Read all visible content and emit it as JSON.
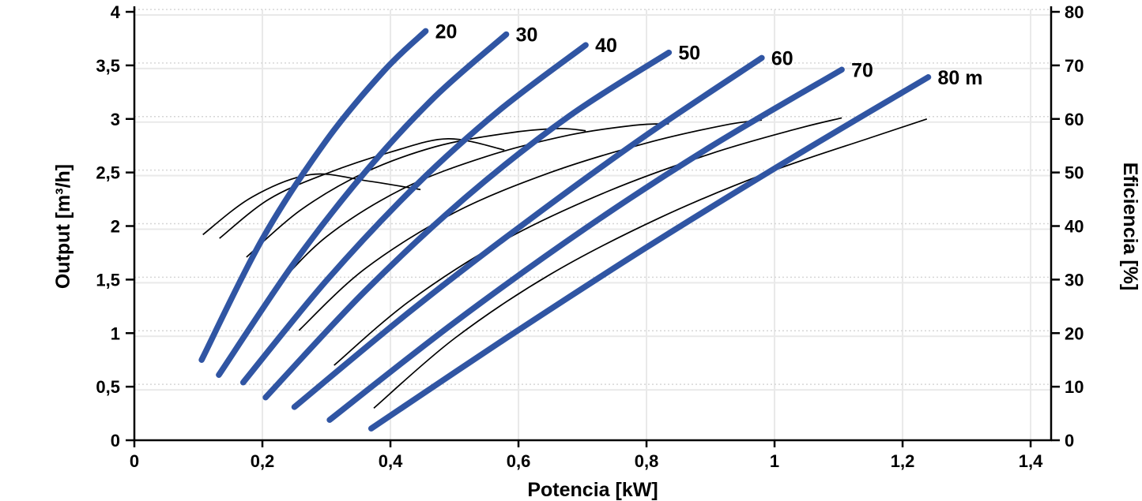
{
  "chart_data": {
    "type": "line",
    "title": "",
    "xlabel": "Potencia [kW]",
    "ylabel_left": "Output [m³/h]",
    "ylabel_right": "Eficiencia [%]",
    "xlim": [
      0,
      1.432
    ],
    "ylim_left": [
      0,
      4
    ],
    "ylim_right": [
      0,
      80
    ],
    "grid": "on",
    "x_ticks": [
      {
        "v": 0,
        "label": "0"
      },
      {
        "v": 0.2,
        "label": "0,2"
      },
      {
        "v": 0.4,
        "label": "0,4"
      },
      {
        "v": 0.6,
        "label": "0,6"
      },
      {
        "v": 0.8,
        "label": "0,8"
      },
      {
        "v": 1,
        "label": "1"
      },
      {
        "v": 1.2,
        "label": "1,2"
      },
      {
        "v": 1.4,
        "label": "1,4"
      }
    ],
    "y_ticks_left": [
      {
        "v": 0,
        "label": "0"
      },
      {
        "v": 0.5,
        "label": "0,5"
      },
      {
        "v": 1,
        "label": "1"
      },
      {
        "v": 1.5,
        "label": "1,5"
      },
      {
        "v": 2,
        "label": "2"
      },
      {
        "v": 2.5,
        "label": "2,5"
      },
      {
        "v": 3,
        "label": "3"
      },
      {
        "v": 3.5,
        "label": "3,5"
      },
      {
        "v": 4,
        "label": "4"
      }
    ],
    "y_ticks_right": [
      {
        "v": 0,
        "label": "0"
      },
      {
        "v": 10,
        "label": "10"
      },
      {
        "v": 20,
        "label": "20"
      },
      {
        "v": 30,
        "label": "30"
      },
      {
        "v": 40,
        "label": "40"
      },
      {
        "v": 50,
        "label": "50"
      },
      {
        "v": 60,
        "label": "60"
      },
      {
        "v": 70,
        "label": "70"
      },
      {
        "v": 80,
        "label": "80"
      }
    ],
    "series": [
      {
        "name": "pump-curve-20",
        "label": "20",
        "axis": "left",
        "points": [
          [
            0.105,
            0.75
          ],
          [
            0.2,
            1.88
          ],
          [
            0.3,
            2.8
          ],
          [
            0.39,
            3.45
          ],
          [
            0.455,
            3.82
          ]
        ]
      },
      {
        "name": "pump-curve-30",
        "label": "30",
        "axis": "left",
        "points": [
          [
            0.132,
            0.61
          ],
          [
            0.25,
            1.66
          ],
          [
            0.36,
            2.5
          ],
          [
            0.47,
            3.21
          ],
          [
            0.581,
            3.79
          ]
        ]
      },
      {
        "name": "pump-curve-40",
        "label": "40",
        "axis": "left",
        "points": [
          [
            0.17,
            0.54
          ],
          [
            0.3,
            1.49
          ],
          [
            0.44,
            2.38
          ],
          [
            0.57,
            3.08
          ],
          [
            0.705,
            3.69
          ]
        ]
      },
      {
        "name": "pump-curve-50",
        "label": "50",
        "axis": "left",
        "points": [
          [
            0.205,
            0.4
          ],
          [
            0.36,
            1.39
          ],
          [
            0.52,
            2.28
          ],
          [
            0.68,
            3.03
          ],
          [
            0.835,
            3.62
          ]
        ]
      },
      {
        "name": "pump-curve-60",
        "label": "60",
        "axis": "left",
        "points": [
          [
            0.25,
            0.31
          ],
          [
            0.43,
            1.2
          ],
          [
            0.615,
            2.05
          ],
          [
            0.8,
            2.85
          ],
          [
            0.98,
            3.57
          ]
        ]
      },
      {
        "name": "pump-curve-70",
        "label": "70",
        "axis": "left",
        "points": [
          [
            0.305,
            0.19
          ],
          [
            0.5,
            1.1
          ],
          [
            0.705,
            1.98
          ],
          [
            0.9,
            2.74
          ],
          [
            1.105,
            3.46
          ]
        ]
      },
      {
        "name": "pump-curve-80",
        "label": "80 m",
        "axis": "left",
        "points": [
          [
            0.37,
            0.11
          ],
          [
            0.58,
            0.95
          ],
          [
            0.8,
            1.8
          ],
          [
            1.02,
            2.61
          ],
          [
            1.24,
            3.39
          ]
        ]
      }
    ],
    "efficiency_series": [
      {
        "name": "efficiency-curve-20",
        "head": "20",
        "axis": "right",
        "points": [
          [
            0.107,
            38.4
          ],
          [
            0.185,
            45.5
          ],
          [
            0.275,
            49.6
          ],
          [
            0.36,
            48.5
          ],
          [
            0.447,
            46.8
          ]
        ]
      },
      {
        "name": "efficiency-curve-30",
        "head": "30",
        "axis": "right",
        "points": [
          [
            0.133,
            37.7
          ],
          [
            0.21,
            45.0
          ],
          [
            0.3,
            49.8
          ],
          [
            0.4,
            53.8
          ],
          [
            0.49,
            56.3
          ],
          [
            0.578,
            54.2
          ]
        ]
      },
      {
        "name": "efficiency-curve-40",
        "head": "40",
        "axis": "right",
        "points": [
          [
            0.175,
            34.2
          ],
          [
            0.26,
            43.0
          ],
          [
            0.36,
            50.0
          ],
          [
            0.47,
            54.8
          ],
          [
            0.58,
            57.3
          ],
          [
            0.66,
            58.2
          ],
          [
            0.705,
            57.8
          ]
        ]
      },
      {
        "name": "efficiency-curve-50",
        "head": "50",
        "axis": "right",
        "points": [
          [
            0.212,
            27.4
          ],
          [
            0.3,
            38.0
          ],
          [
            0.42,
            47.0
          ],
          [
            0.55,
            53.0
          ],
          [
            0.68,
            57.0
          ],
          [
            0.78,
            58.8
          ],
          [
            0.835,
            59.1
          ]
        ]
      },
      {
        "name": "efficiency-curve-60",
        "head": "60",
        "axis": "right",
        "points": [
          [
            0.257,
            20.5
          ],
          [
            0.36,
            32.0
          ],
          [
            0.5,
            42.5
          ],
          [
            0.65,
            50.0
          ],
          [
            0.8,
            55.5
          ],
          [
            0.92,
            58.8
          ],
          [
            0.98,
            59.8
          ]
        ]
      },
      {
        "name": "efficiency-curve-70",
        "head": "70",
        "axis": "right",
        "points": [
          [
            0.312,
            14.0
          ],
          [
            0.43,
            26.0
          ],
          [
            0.58,
            37.5
          ],
          [
            0.74,
            46.5
          ],
          [
            0.9,
            53.5
          ],
          [
            1.03,
            58.0
          ],
          [
            1.105,
            60.2
          ]
        ]
      },
      {
        "name": "efficiency-curve-80",
        "head": "80",
        "axis": "right",
        "points": [
          [
            0.374,
            6.0
          ],
          [
            0.5,
            19.0
          ],
          [
            0.65,
            31.0
          ],
          [
            0.82,
            41.5
          ],
          [
            0.99,
            50.0
          ],
          [
            1.15,
            56.5
          ],
          [
            1.238,
            60.0
          ]
        ]
      }
    ],
    "colors": {
      "pump_curve": "#3055a3",
      "efficiency_curve": "#000000",
      "axis": "#000000",
      "grid_solid": "#e9e9e9",
      "grid_dotted": "#d6d6d6",
      "background": "#ffffff"
    },
    "legend_position": "none"
  }
}
